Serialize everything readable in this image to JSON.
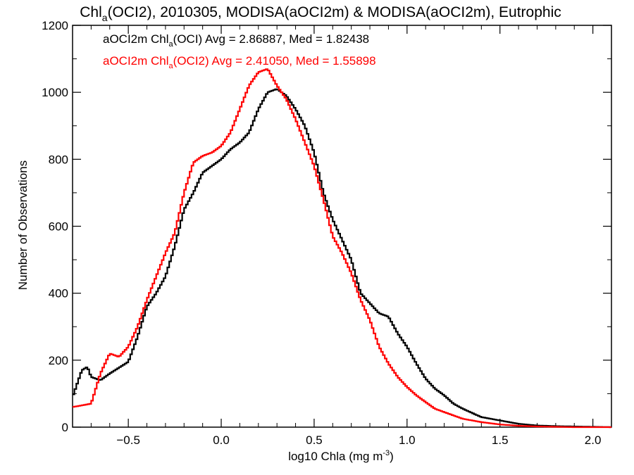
{
  "chart_data": {
    "type": "line",
    "title": {
      "pre": "Chl",
      "sub": "a",
      "post": "(OCI2), 2010305, MODISA(aOCI2m) & MODISA(aOCI2m), Eutrophic"
    },
    "xlabel": {
      "pre": "log10 Chla (mg m",
      "sup": "-3",
      "post": ")"
    },
    "ylabel": "Number of Observations",
    "xlim": [
      -0.8,
      2.1
    ],
    "ylim": [
      0,
      1200
    ],
    "xticks": [
      -0.5,
      0.0,
      0.5,
      1.0,
      1.5,
      2.0
    ],
    "xtick_labels": [
      "−0.5",
      "0.0",
      "0.5",
      "1.0",
      "1.5",
      "2.0"
    ],
    "yticks": [
      0,
      200,
      400,
      600,
      800,
      1000,
      1200
    ],
    "ytick_labels": [
      "0",
      "200",
      "400",
      "600",
      "800",
      "1000",
      "1200"
    ],
    "grid": false,
    "legend_position": "top-left",
    "series": [
      {
        "name": {
          "pre": "aOCI2m Chl",
          "sub": "a",
          "post": "(OCI) Avg = 2.86887, Med = 1.82438"
        },
        "color": "#000000",
        "x": [
          -0.8,
          -0.75,
          -0.72,
          -0.7,
          -0.65,
          -0.6,
          -0.5,
          -0.45,
          -0.4,
          -0.35,
          -0.3,
          -0.25,
          -0.2,
          -0.15,
          -0.1,
          -0.05,
          0.0,
          0.05,
          0.1,
          0.15,
          0.2,
          0.25,
          0.3,
          0.35,
          0.4,
          0.45,
          0.5,
          0.55,
          0.6,
          0.65,
          0.7,
          0.75,
          0.8,
          0.85,
          0.9,
          0.95,
          1.0,
          1.05,
          1.1,
          1.15,
          1.2,
          1.25,
          1.3,
          1.4,
          1.5,
          1.6,
          1.7,
          1.8,
          1.9,
          2.0,
          2.1
        ],
        "values": [
          90,
          170,
          180,
          150,
          140,
          160,
          195,
          270,
          360,
          400,
          450,
          540,
          650,
          700,
          760,
          780,
          800,
          830,
          850,
          880,
          950,
          1000,
          1010,
          990,
          950,
          900,
          820,
          700,
          620,
          560,
          500,
          400,
          370,
          340,
          330,
          280,
          240,
          190,
          145,
          115,
          95,
          70,
          55,
          30,
          20,
          10,
          5,
          3,
          2,
          1,
          0
        ]
      },
      {
        "name": {
          "pre": "aOCI2m Chl",
          "sub": "a",
          "post": "(OCI2) Avg = 2.41050, Med = 1.55898"
        },
        "color": "#ff0000",
        "x": [
          -0.8,
          -0.7,
          -0.65,
          -0.6,
          -0.55,
          -0.5,
          -0.45,
          -0.4,
          -0.35,
          -0.3,
          -0.25,
          -0.2,
          -0.15,
          -0.1,
          -0.05,
          0.0,
          0.05,
          0.1,
          0.15,
          0.2,
          0.25,
          0.3,
          0.35,
          0.4,
          0.45,
          0.5,
          0.55,
          0.6,
          0.65,
          0.7,
          0.75,
          0.8,
          0.85,
          0.9,
          0.95,
          1.0,
          1.05,
          1.1,
          1.15,
          1.2,
          1.25,
          1.3,
          1.4,
          1.5,
          1.6,
          1.7,
          1.8,
          1.9,
          2.0,
          2.1
        ],
        "values": [
          60,
          70,
          160,
          220,
          210,
          240,
          300,
          380,
          450,
          520,
          580,
          700,
          790,
          810,
          820,
          840,
          880,
          950,
          1020,
          1060,
          1070,
          1020,
          980,
          920,
          850,
          780,
          680,
          570,
          520,
          460,
          380,
          320,
          240,
          190,
          150,
          120,
          95,
          75,
          55,
          45,
          35,
          25,
          15,
          8,
          4,
          2,
          1,
          0,
          0,
          0
        ]
      }
    ]
  }
}
